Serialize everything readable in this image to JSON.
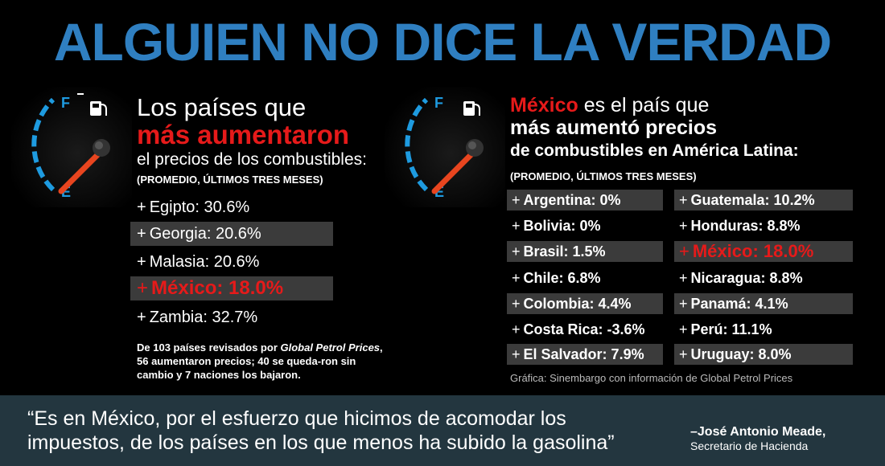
{
  "title": "ALGUIEN NO DICE LA VERDAD",
  "left": {
    "heading_line1": "Los países que",
    "heading_line2": "más aumentaron",
    "heading_line3": "el precios de los combustibles:",
    "subheading": "(PROMEDIO, ÚLTIMOS TRES MESES)",
    "rows": [
      {
        "plus": "+",
        "label": "Egipto: 30.6%"
      },
      {
        "plus": "+",
        "label": "Georgia: 20.6%"
      },
      {
        "plus": "+",
        "label": "Malasia: 20.6%"
      },
      {
        "plus": "+",
        "label": "México: 18.0%"
      },
      {
        "plus": "+",
        "label": "Zambia: 32.7%"
      }
    ],
    "note_line1": "De 103 países revisados por ",
    "note_italic": "Global Petrol Prices",
    "note_line2": ", 56 aumentaron precios; 40 se queda-ron sin cambio y 7 naciones los bajaron."
  },
  "right": {
    "heading_red": "México",
    "heading_line1_rest": " es el país que",
    "heading_line2": "más aumentó precios",
    "heading_line3": "de combustibles en América Latina:",
    "subheading": "(PROMEDIO, ÚLTIMOS TRES MESES)",
    "col1": [
      {
        "plus": "+",
        "label": "Argentina: 0%"
      },
      {
        "plus": "+",
        "label": "Bolivia: 0%"
      },
      {
        "plus": "+",
        "label": "Brasil: 1.5%"
      },
      {
        "plus": "+",
        "label": "Chile: 6.8%"
      },
      {
        "plus": "+",
        "label": "Colombia: 4.4%"
      },
      {
        "plus": "+",
        "label": "Costa Rica: -3.6%"
      },
      {
        "plus": "+",
        "label": "El Salvador: 7.9%"
      }
    ],
    "col2": [
      {
        "plus": "+",
        "label": "Guatemala: 10.2%"
      },
      {
        "plus": "+",
        "label": "Honduras: 8.8%"
      },
      {
        "plus": "+",
        "label": "México: 18.0%"
      },
      {
        "plus": "+",
        "label": "Nicaragua: 8.8%"
      },
      {
        "plus": "+",
        "label": "Panamá: 4.1%"
      },
      {
        "plus": "+",
        "label": "Perú: 11.1%"
      },
      {
        "plus": "+",
        "label": "Uruguay: 8.0%"
      }
    ],
    "credit": "Gráfica: Sinembargo con información de Global Petrol Prices"
  },
  "gauge": {
    "full_label": "F",
    "empty_label": "E",
    "icon": "fuel-pump-icon"
  },
  "footer": {
    "quote": "“Es en México, por el esfuerzo que hicimos de acomodar los impuestos, de los países en los que menos ha subido la gasolina”",
    "author": "–José Antonio Meade,",
    "role": "Secretario de Hacienda"
  },
  "colors": {
    "title": "#2f7fc1",
    "accent_red": "#e61a1a",
    "shade": "#3b3b3b",
    "footer_bg": "#23363f",
    "gauge_blue": "#1e9be0",
    "needle": "#e8451f"
  }
}
